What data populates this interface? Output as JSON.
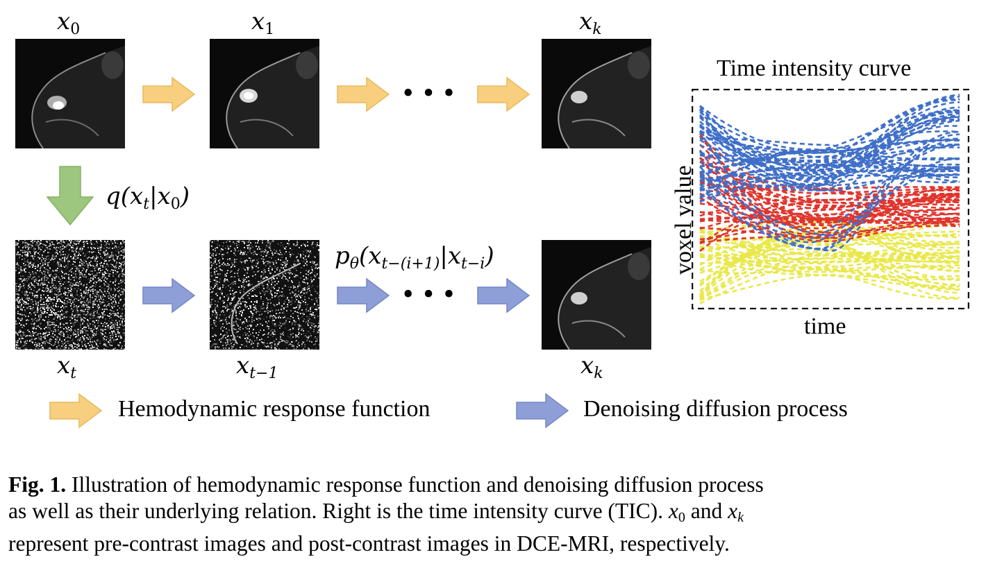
{
  "labels": {
    "x0": "x",
    "x0_sub": "0",
    "x1": "x",
    "x1_sub": "1",
    "xk_top": "x",
    "xk_top_sub": "k",
    "xt": "x",
    "xt_sub": "t",
    "xt1": "x",
    "xt1_sub": "t−1",
    "xk_bot": "x",
    "xk_bot_sub": "k",
    "forward": "q(x",
    "forward_sub_t": "t",
    "forward_mid": "|x",
    "forward_sub_0": "0",
    "forward_end": ")",
    "reverse_p": "p",
    "reverse_theta": "θ",
    "reverse_open": "(x",
    "reverse_sub1": "t−(i+1)",
    "reverse_mid": "|x",
    "reverse_sub2": "t−i",
    "reverse_end": ")",
    "dots": "•••"
  },
  "tic": {
    "title": "Time intensity curve",
    "ylabel": "voxel value",
    "xlabel": "time",
    "colors": {
      "blue": "#3f6fc8",
      "red": "#e0342c",
      "yellow": "#e9e84a"
    }
  },
  "legend": {
    "orange_label": "Hemodynamic response function",
    "blue_label": "Denoising diffusion process",
    "orange_color": "#f7cf7e",
    "blue_color": "#8e9fd8"
  },
  "caption": {
    "fig": "Fig. 1.",
    "line1": " Illustration of hemodynamic response function and denoising diffusion process",
    "line2": "as well as their underlying relation. Right is the time intensity curve (TIC). ",
    "x0": "x",
    "x0_sub": "0",
    "and": " and ",
    "xk": "x",
    "xk_sub": "k",
    "line3": "represent pre-contrast images and post-contrast images in DCE-MRI, respectively."
  }
}
